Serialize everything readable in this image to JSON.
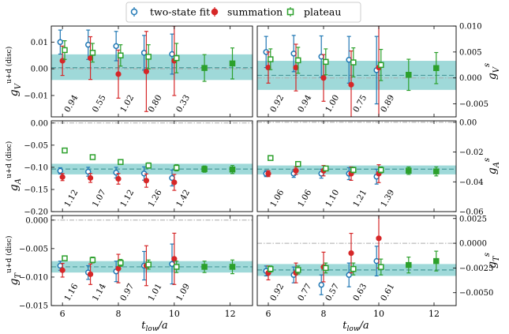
{
  "legend": {
    "entries": [
      {
        "label": "two-state fit",
        "marker": "circle-open",
        "color": "#1f77b4"
      },
      {
        "label": "summation",
        "marker": "circle-filled",
        "color": "#d62728"
      },
      {
        "label": "plateau",
        "marker": "square-open",
        "color": "#2ca02c"
      }
    ]
  },
  "colors": {
    "band": "#5fbfc0",
    "band_line": "#4a9a9b",
    "ref_line": "#aaaaaa",
    "fit": "#1f77b4",
    "sum": "#d62728",
    "plat": "#2ca02c"
  },
  "xlabel": "t_low/a",
  "chart_data": [
    {
      "type": "scatter",
      "panel": "V-disconnected",
      "ylabel": "g_V^{u+d (disc)}",
      "xlim": [
        5.6,
        12.8
      ],
      "ylim": [
        -0.018,
        0.016
      ],
      "xticks": [
        "6",
        "8",
        "10",
        "12"
      ],
      "yticks": [
        "0.01",
        "0.00",
        "−0.01"
      ],
      "ytick_values": [
        0.01,
        0.0,
        -0.01
      ],
      "band": {
        "center": 0.0004,
        "lower": -0.0042,
        "upper": 0.0054
      },
      "ref_line": 0.0,
      "chi2": [
        "0.94",
        "0.55",
        "1.02",
        "0.80",
        "0.33"
      ],
      "series": [
        {
          "name": "two-state fit",
          "x": [
            6,
            7,
            8,
            9,
            10
          ],
          "y": [
            0.01,
            0.009,
            0.0085,
            0.006,
            0.0055
          ],
          "err": [
            0.0045,
            0.0055,
            0.0055,
            0.0065,
            0.0075
          ]
        },
        {
          "name": "summation",
          "x": [
            6,
            7,
            8,
            9,
            10
          ],
          "y": [
            0.003,
            0.004,
            -0.002,
            -0.001,
            0.003
          ],
          "err": [
            0.0055,
            0.008,
            0.009,
            0.015,
            0.013
          ]
        },
        {
          "name": "plateau",
          "x": [
            6,
            7,
            8,
            9,
            10,
            11,
            12
          ],
          "y": [
            0.007,
            0.006,
            0.005,
            0.0045,
            0.004,
            0.0003,
            0.002
          ],
          "err": [
            0.0035,
            0.0035,
            0.004,
            0.0045,
            0.0055,
            0.005,
            0.0058
          ]
        }
      ]
    },
    {
      "type": "scatter",
      "panel": "V-strange",
      "ylabel": "g_V^s",
      "xlim": [
        5.6,
        12.8
      ],
      "ylim": [
        -0.0075,
        0.01
      ],
      "xticks": [
        "6",
        "8",
        "10",
        "12"
      ],
      "yticks": [
        "0.010",
        "0.005",
        "0.000",
        "−0.005"
      ],
      "ytick_values": [
        0.01,
        0.005,
        0.0,
        -0.005
      ],
      "band": {
        "center": 0.0005,
        "lower": -0.0023,
        "upper": 0.0033
      },
      "ref_line": 0.0,
      "chi2": [
        "0.92",
        "0.94",
        "1.00",
        "0.75",
        "0.89"
      ],
      "series": [
        {
          "name": "two-state fit",
          "x": [
            6,
            7,
            8,
            9,
            10
          ],
          "y": [
            0.005,
            0.0047,
            0.0041,
            0.0035,
            0.0015
          ],
          "err": [
            0.003,
            0.0035,
            0.004,
            0.0045,
            0.0065
          ]
        },
        {
          "name": "summation",
          "x": [
            6,
            7,
            8,
            9,
            10
          ],
          "y": [
            0.002,
            0.002,
            0.0,
            -0.0013,
            0.002
          ],
          "err": [
            0.003,
            0.0045,
            0.0045,
            0.0065,
            0.013
          ]
        },
        {
          "name": "plateau",
          "x": [
            6,
            7,
            8,
            9,
            10,
            11,
            12
          ],
          "y": [
            0.0036,
            0.0034,
            0.0031,
            0.003,
            0.0025,
            0.0006,
            0.0019
          ],
          "err": [
            0.002,
            0.0025,
            0.0025,
            0.0028,
            0.003,
            0.003,
            0.003
          ]
        }
      ]
    },
    {
      "type": "scatter",
      "panel": "A-disconnected",
      "ylabel": "g_A^{u+d (disc)}",
      "xlim": [
        5.6,
        12.8
      ],
      "ylim": [
        -0.2,
        0.005
      ],
      "xticks": [
        "6",
        "8",
        "10",
        "12"
      ],
      "yticks": [
        "0.00",
        "−0.05",
        "−0.10",
        "−0.15",
        "−0.20"
      ],
      "ytick_values": [
        0.0,
        -0.05,
        -0.1,
        -0.15,
        -0.2
      ],
      "band": {
        "center": -0.104,
        "lower": -0.116,
        "upper": -0.092
      },
      "ref_line": 0.0,
      "chi2": [
        "1.12",
        "1.07",
        "1.12",
        "1.26",
        "1.42"
      ],
      "series": [
        {
          "name": "two-state fit",
          "x": [
            6,
            7,
            8,
            9,
            10
          ],
          "y": [
            -0.108,
            -0.11,
            -0.112,
            -0.114,
            -0.124
          ],
          "err": [
            0.007,
            0.01,
            0.012,
            0.015,
            0.018
          ]
        },
        {
          "name": "summation",
          "x": [
            6,
            7,
            8,
            9,
            10
          ],
          "y": [
            -0.122,
            -0.124,
            -0.126,
            -0.13,
            -0.134
          ],
          "err": [
            0.008,
            0.01,
            0.012,
            0.015,
            0.018
          ]
        },
        {
          "name": "plateau",
          "x": [
            6,
            7,
            8,
            9,
            10,
            11,
            12
          ],
          "y": [
            -0.062,
            -0.077,
            -0.088,
            -0.096,
            -0.101,
            -0.104,
            -0.105
          ],
          "err": [
            0.004,
            0.005,
            0.005,
            0.006,
            0.007,
            0.007,
            0.009
          ]
        }
      ]
    },
    {
      "type": "scatter",
      "panel": "A-strange",
      "ylabel": "g_A^s",
      "xlim": [
        5.6,
        12.8
      ],
      "ylim": [
        -0.06,
        0.001
      ],
      "xticks": [
        "6",
        "8",
        "10",
        "12"
      ],
      "yticks": [
        "0.00",
        "−0.02",
        "−0.04",
        "−0.06"
      ],
      "ytick_values": [
        0.0,
        -0.02,
        -0.04,
        -0.06
      ],
      "band": {
        "center": -0.0315,
        "lower": -0.035,
        "upper": -0.029
      },
      "ref_line": 0.0,
      "chi2": [
        "1.06",
        "1.06",
        "1.10",
        "1.21",
        "1.39"
      ],
      "series": [
        {
          "name": "two-state fit",
          "x": [
            6,
            7,
            8,
            9,
            10
          ],
          "y": [
            -0.0345,
            -0.0345,
            -0.0345,
            -0.0345,
            -0.0365
          ],
          "err": [
            0.002,
            0.0025,
            0.003,
            0.004,
            0.005
          ]
        },
        {
          "name": "summation",
          "x": [
            6,
            7,
            8,
            9,
            10
          ],
          "y": [
            -0.0345,
            -0.0325,
            -0.0325,
            -0.0345,
            -0.0345
          ],
          "err": [
            0.002,
            0.0025,
            0.0035,
            0.0045,
            0.006
          ]
        },
        {
          "name": "plateau",
          "x": [
            6,
            7,
            8,
            9,
            10,
            11,
            12
          ],
          "y": [
            -0.024,
            -0.028,
            -0.031,
            -0.032,
            -0.032,
            -0.0325,
            -0.033
          ],
          "err": [
            0.0015,
            0.0015,
            0.0015,
            0.0018,
            0.002,
            0.0025,
            0.003
          ]
        }
      ]
    },
    {
      "type": "scatter",
      "panel": "T-disconnected",
      "ylabel": "g_T^{u+d (disc)}",
      "xlim": [
        5.6,
        12.8
      ],
      "ylim": [
        -0.015,
        0.0008
      ],
      "xticks": [
        "6",
        "8",
        "10",
        "12"
      ],
      "yticks": [
        "0.000",
        "−0.005",
        "−0.010",
        "−0.015"
      ],
      "ytick_values": [
        0.0,
        -0.005,
        -0.01,
        -0.015
      ],
      "band": {
        "center": -0.0082,
        "lower": -0.0092,
        "upper": -0.0072
      },
      "ref_line": 0.0,
      "chi2": [
        "1.16",
        "1.14",
        "0.97",
        "1.01",
        "1.09"
      ],
      "series": [
        {
          "name": "two-state fit",
          "x": [
            6,
            7,
            8,
            9,
            10
          ],
          "y": [
            -0.008,
            -0.0092,
            -0.009,
            -0.008,
            -0.0077
          ],
          "err": [
            0.0008,
            0.0012,
            0.0018,
            0.0025,
            0.0035
          ]
        },
        {
          "name": "summation",
          "x": [
            6,
            7,
            8,
            9,
            10
          ],
          "y": [
            -0.0088,
            -0.0095,
            -0.0085,
            -0.008,
            -0.0068
          ],
          "err": [
            0.0012,
            0.0018,
            0.0025,
            0.0035,
            0.0045
          ]
        },
        {
          "name": "plateau",
          "x": [
            6,
            7,
            8,
            9,
            10,
            11,
            12
          ],
          "y": [
            -0.0067,
            -0.007,
            -0.0075,
            -0.0078,
            -0.0082,
            -0.0082,
            -0.0082
          ],
          "err": [
            0.0004,
            0.0005,
            0.0006,
            0.0008,
            0.001,
            0.001,
            0.0012
          ]
        }
      ]
    },
    {
      "type": "scatter",
      "panel": "T-strange",
      "ylabel": "g_T^s",
      "xlim": [
        5.6,
        12.8
      ],
      "ylim": [
        -0.0063,
        0.0028
      ],
      "xticks": [
        "6",
        "8",
        "10",
        "12"
      ],
      "yticks": [
        "0.0025",
        "0.0000",
        "−0.0025",
        "−0.0050"
      ],
      "ytick_values": [
        0.0025,
        0.0,
        -0.0025,
        -0.005
      ],
      "band": {
        "center": -0.0027,
        "lower": -0.0033,
        "upper": -0.0021
      },
      "ref_line": 0.0,
      "chi2": [
        "0.92",
        "0.77",
        "0.57",
        "0.63",
        "0.61"
      ],
      "series": [
        {
          "name": "two-state fit",
          "x": [
            6,
            7,
            8,
            9,
            10
          ],
          "y": [
            -0.0028,
            -0.0032,
            -0.0042,
            -0.0032,
            -0.0018
          ],
          "err": [
            0.0005,
            0.0008,
            0.001,
            0.0012,
            0.0015
          ]
        },
        {
          "name": "summation",
          "x": [
            6,
            7,
            8,
            9,
            10
          ],
          "y": [
            -0.003,
            -0.003,
            -0.0024,
            -0.001,
            0.0005
          ],
          "err": [
            0.0007,
            0.001,
            0.0015,
            0.002,
            0.003
          ]
        },
        {
          "name": "plateau",
          "x": [
            6,
            7,
            8,
            9,
            10,
            11,
            12
          ],
          "y": [
            -0.0026,
            -0.0027,
            -0.0025,
            -0.0026,
            -0.0024,
            -0.0022,
            -0.0018
          ],
          "err": [
            0.0003,
            0.0004,
            0.0005,
            0.0006,
            0.0008,
            0.0008,
            0.001
          ]
        }
      ]
    }
  ]
}
